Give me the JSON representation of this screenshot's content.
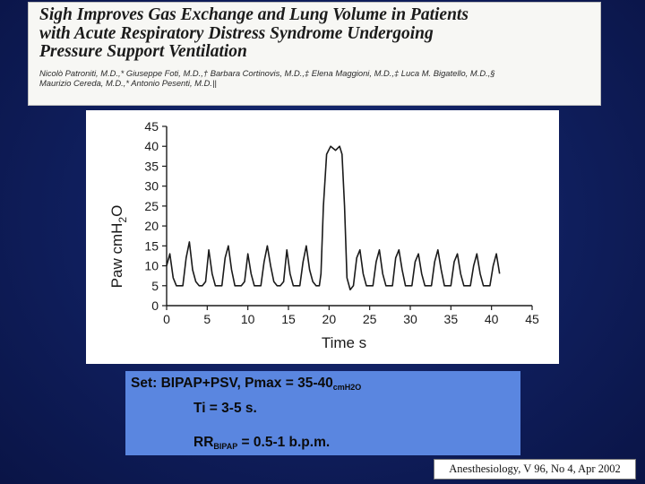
{
  "header": {
    "title_lines": [
      "Sigh Improves Gas Exchange and Lung Volume in Patients",
      "with Acute Respiratory Distress Syndrome Undergoing",
      "Pressure Support Ventilation"
    ],
    "authors_lines": [
      "Nicolò Patroniti, M.D.,* Giuseppe Foti, M.D.,† Barbara Cortinovis, M.D.,‡ Elena Maggioni, M.D.,‡ Luca M. Bigatello, M.D.,§",
      "Maurizio Cereda, M.D.,* Antonio Pesenti, M.D.||"
    ]
  },
  "chart_data": {
    "type": "line",
    "xlabel": "Time s",
    "ylabel": "Paw cmH2O",
    "ylabel_main": "Paw cmH",
    "ylabel_sub": "2",
    "ylabel_tail": "O",
    "xlim": [
      0,
      45
    ],
    "ylim": [
      0,
      45
    ],
    "x_ticks": [
      "0",
      "5",
      "10",
      "15",
      "20",
      "25",
      "30",
      "35",
      "40",
      "45"
    ],
    "y_ticks": [
      "0",
      "5",
      "10",
      "15",
      "20",
      "25",
      "30",
      "35",
      "40",
      "45"
    ],
    "grid": false,
    "series": [
      {
        "color": "#1a1a1a",
        "x": [
          0,
          0.4,
          0.8,
          1.2,
          1.6,
          2.0,
          2.4,
          2.8,
          3.2,
          3.6,
          4.0,
          4.4,
          4.8,
          5.2,
          5.6,
          6.0,
          6.4,
          6.8,
          7.2,
          7.6,
          8.0,
          8.4,
          8.8,
          9.2,
          9.6,
          10.0,
          10.4,
          10.8,
          11.2,
          11.6,
          12.0,
          12.4,
          12.8,
          13.2,
          13.6,
          14.0,
          14.4,
          14.8,
          15.2,
          15.6,
          16.0,
          16.4,
          16.8,
          17.2,
          17.6,
          18.0,
          18.4,
          18.8,
          19.0,
          19.3,
          19.7,
          20.2,
          20.8,
          21.3,
          21.6,
          21.9,
          22.2,
          22.6,
          23.0,
          23.4,
          23.8,
          24.2,
          24.6,
          25.0,
          25.4,
          25.8,
          26.2,
          26.6,
          27.0,
          27.4,
          27.8,
          28.2,
          28.6,
          29.0,
          29.4,
          29.8,
          30.2,
          30.6,
          31.0,
          31.4,
          31.8,
          32.2,
          32.6,
          33.0,
          33.4,
          33.8,
          34.2,
          34.6,
          35.0,
          35.4,
          35.8,
          36.2,
          36.6,
          37.0,
          37.4,
          37.8,
          38.2,
          38.6,
          39.0,
          39.4,
          39.8,
          40.2,
          40.6,
          41.0
        ],
        "y": [
          10,
          13,
          7,
          5,
          5,
          5,
          12,
          16,
          9,
          6,
          5,
          5,
          6,
          14,
          8,
          5,
          5,
          5,
          12,
          15,
          9,
          5,
          5,
          5,
          6,
          13,
          8,
          5,
          5,
          5,
          11,
          15,
          10,
          6,
          5,
          5,
          6,
          14,
          8,
          5,
          5,
          5,
          11,
          15,
          9,
          6,
          5,
          5,
          8,
          25,
          38,
          40,
          39,
          40,
          38,
          25,
          7,
          4,
          5,
          12,
          14,
          8,
          5,
          5,
          5,
          11,
          14,
          8,
          5,
          5,
          5,
          12,
          14,
          9,
          5,
          5,
          5,
          11,
          13,
          8,
          5,
          5,
          5,
          11,
          14,
          9,
          5,
          5,
          5,
          11,
          13,
          8,
          5,
          5,
          5,
          10,
          13,
          8,
          5,
          5,
          5,
          10,
          13,
          8
        ]
      }
    ]
  },
  "note": {
    "line1_main": "Set: BIPAP+PSV, Pmax = 35-40",
    "line1_sub": "cmH2O",
    "line2": "Ti = 3-5 s.",
    "line3_pre": "RR",
    "line3_sub": "BIPAP",
    "line3_post": " = 0.5-1 b.p.m."
  },
  "citation": "Anesthesiology, V 96, No 4, Apr 2002"
}
